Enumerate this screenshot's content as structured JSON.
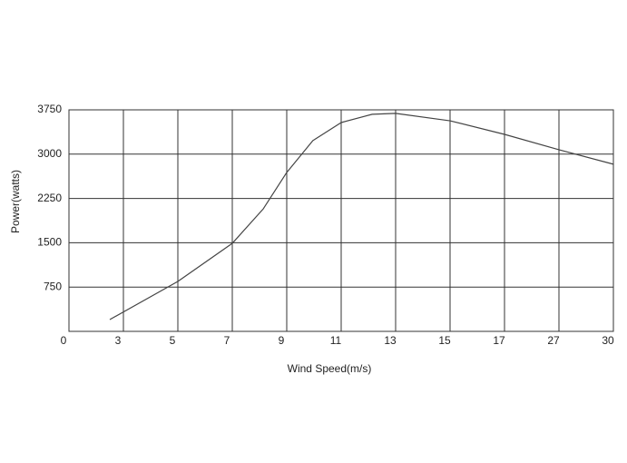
{
  "chart_data": {
    "type": "line",
    "xlabel": "Wind Speed(m/s)",
    "ylabel": "Power(watts)",
    "x": [
      0.75,
      2,
      3,
      3.57,
      4,
      4.48,
      5,
      5.57,
      6,
      7,
      8,
      9,
      10
    ],
    "series": [
      {
        "color": "#444444",
        "values": [
          200,
          845,
          1490,
          2075,
          2690,
          3230,
          3535,
          3675,
          3690,
          3565,
          3335,
          3075,
          2830
        ]
      }
    ],
    "xlim": [
      0,
      10
    ],
    "xticks": [
      {
        "value": 0,
        "label": "0"
      },
      {
        "value": 1,
        "label": "3"
      },
      {
        "value": 2,
        "label": "5"
      },
      {
        "value": 3,
        "label": "7"
      },
      {
        "value": 4,
        "label": "9"
      },
      {
        "value": 5,
        "label": "11"
      },
      {
        "value": 6,
        "label": "13"
      },
      {
        "value": 7,
        "label": "15"
      },
      {
        "value": 8,
        "label": "17"
      },
      {
        "value": 9,
        "label": "27"
      },
      {
        "value": 10,
        "label": "30"
      }
    ],
    "ylim": [
      0,
      3750
    ],
    "yticks": [
      750,
      1500,
      2250,
      3000,
      3750
    ],
    "grid": true
  }
}
